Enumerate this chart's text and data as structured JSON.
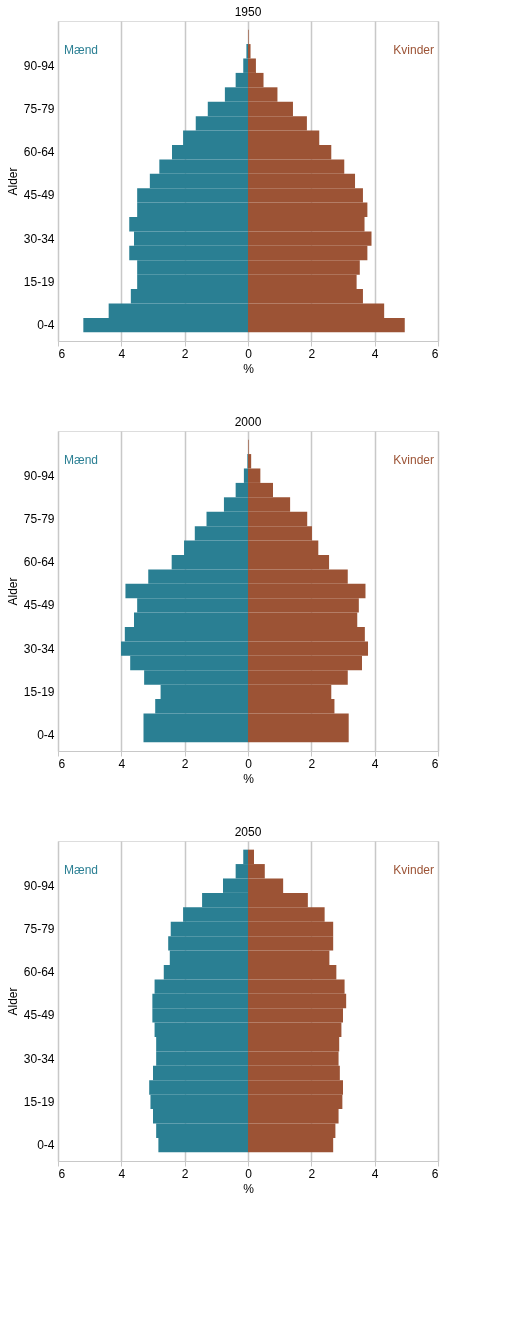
{
  "chart_data": [
    {
      "type": "bar",
      "orientation": "horizontal",
      "stacked": true,
      "title": "1950",
      "xlabel": "%",
      "ylabel": "Alder",
      "categories": [
        null,
        null,
        "90-94",
        null,
        null,
        "75-79",
        null,
        null,
        "60-64",
        null,
        null,
        "45-49",
        null,
        null,
        "30-34",
        null,
        null,
        "15-19",
        null,
        null,
        "0-4"
      ],
      "series": [
        {
          "name": "Mænd",
          "color": "#2a7f93",
          "values": [
            null,
            -0.05,
            -0.15,
            -0.39,
            -0.73,
            -1.27,
            -1.65,
            -2.05,
            -2.4,
            -2.8,
            -3.1,
            -3.5,
            -3.5,
            -3.75,
            -3.6,
            -3.75,
            -3.5,
            -3.5,
            -3.7,
            -4.4,
            -5.2
          ]
        },
        {
          "name": "Kvinder",
          "color": "#9c5335",
          "values": [
            0.02,
            0.08,
            0.25,
            0.49,
            0.93,
            1.42,
            1.86,
            2.25,
            2.63,
            3.04,
            3.38,
            3.63,
            3.77,
            3.68,
            3.9,
            3.77,
            3.53,
            3.43,
            3.63,
            4.3,
            4.95
          ]
        }
      ],
      "xlim": [
        -6,
        6
      ],
      "xticks": [
        {
          "value": -6,
          "label": "6"
        },
        {
          "value": -4,
          "label": "4"
        },
        {
          "value": -2,
          "label": "2"
        },
        0,
        2,
        4,
        6
      ],
      "grid": "x"
    },
    {
      "type": "bar",
      "orientation": "horizontal",
      "stacked": true,
      "title": "2000",
      "xlabel": "%",
      "ylabel": "Alder",
      "categories": [
        null,
        null,
        "90-94",
        null,
        null,
        "75-79",
        null,
        null,
        "60-64",
        null,
        null,
        "45-49",
        null,
        null,
        "30-34",
        null,
        null,
        "15-19",
        null,
        null,
        "0-4"
      ],
      "series": [
        {
          "name": "Mænd",
          "color": "#2a7f93",
          "values": [
            null,
            -0.02,
            -0.13,
            -0.39,
            -0.76,
            -1.31,
            -1.68,
            -2.02,
            -2.41,
            -3.15,
            -3.87,
            -3.5,
            -3.6,
            -3.89,
            -4.01,
            -3.72,
            -3.28,
            -2.76,
            -2.93,
            -3.3,
            -3.3
          ]
        },
        {
          "name": "Kvinder",
          "color": "#9c5335",
          "values": [
            0.02,
            0.1,
            0.39,
            0.79,
            1.33,
            1.87,
            2.02,
            2.22,
            2.56,
            3.15,
            3.71,
            3.5,
            3.45,
            3.69,
            3.79,
            3.6,
            3.15,
            2.63,
            2.73,
            3.18,
            3.18
          ]
        }
      ],
      "xlim": [
        -6,
        6
      ],
      "xticks": [
        {
          "value": -6,
          "label": "6"
        },
        {
          "value": -4,
          "label": "4"
        },
        {
          "value": -2,
          "label": "2"
        },
        0,
        2,
        4,
        6
      ],
      "grid": "x"
    },
    {
      "type": "bar",
      "orientation": "horizontal",
      "stacked": true,
      "title": "2050",
      "xlabel": "%",
      "ylabel": "Alder",
      "categories": [
        null,
        null,
        "90-94",
        null,
        null,
        "75-79",
        null,
        null,
        "60-64",
        null,
        null,
        "45-49",
        null,
        null,
        "30-34",
        null,
        null,
        "15-19",
        null,
        null,
        "0-4"
      ],
      "series": [
        {
          "name": "Mænd",
          "color": "#2a7f93",
          "values": [
            -0.15,
            -0.39,
            -0.79,
            -1.45,
            -2.05,
            -2.44,
            -2.52,
            -2.47,
            -2.66,
            -2.95,
            -3.02,
            -3.02,
            -2.95,
            -2.9,
            -2.9,
            -3.0,
            -3.12,
            -3.08,
            -3.0,
            -2.9,
            -2.83
          ]
        },
        {
          "name": "Kvinder",
          "color": "#9c5335",
          "values": [
            0.19,
            0.53,
            1.11,
            1.89,
            2.42,
            2.69,
            2.69,
            2.57,
            2.79,
            3.05,
            3.1,
            3.0,
            2.95,
            2.88,
            2.86,
            2.9,
            3.0,
            2.98,
            2.86,
            2.76,
            2.69
          ]
        }
      ],
      "xlim": [
        -6,
        6
      ],
      "xticks": [
        {
          "value": -6,
          "label": "6"
        },
        {
          "value": -4,
          "label": "4"
        },
        {
          "value": -2,
          "label": "2"
        },
        0,
        2,
        4,
        6
      ],
      "grid": "x"
    }
  ]
}
